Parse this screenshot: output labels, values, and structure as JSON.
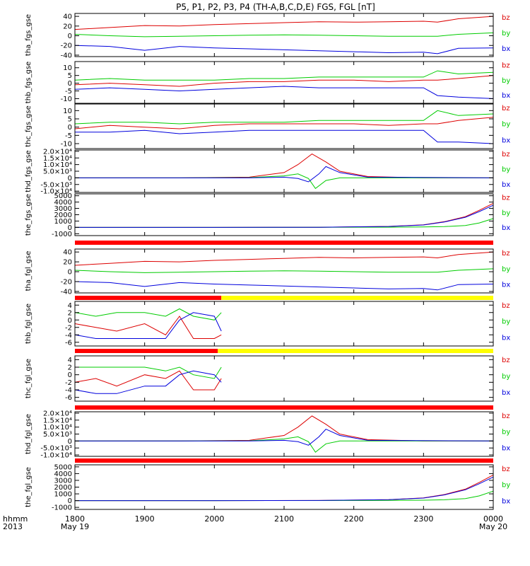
{
  "title": "P5, P1, P2, P3, P4 (TH-A,B,C,D,E) FGS, FGL [nT]",
  "x_axis": {
    "row1_label": "hhmm",
    "row2_label": "2013",
    "ticks": [
      "1800",
      "1900",
      "2000",
      "2100",
      "2200",
      "2300",
      "0000"
    ],
    "tick_dates": {
      "1800": "May 19",
      "0000": "May 20"
    }
  },
  "colors": {
    "bx": "#0000dd",
    "by": "#00cc00",
    "bz": "#dd0000",
    "flag_red": "#ff0000",
    "flag_yellow": "#ffff00",
    "flag_black": "#000000"
  },
  "chart_data": [
    {
      "type": "line",
      "ylabel": "tha_fgs_gse",
      "yticks": [
        "-40",
        "-20",
        "0",
        "20",
        "40"
      ],
      "tickvals": [
        -40,
        -20,
        0,
        20,
        40
      ],
      "ylim": [
        -43,
        46
      ],
      "xlim": [
        18,
        24
      ],
      "series": [
        {
          "name": "bz",
          "x": [
            18.0,
            18.5,
            19.0,
            19.5,
            20.0,
            20.5,
            21.0,
            21.5,
            22.0,
            22.5,
            23.0,
            23.2,
            23.5,
            24.0
          ],
          "values": [
            13,
            17,
            21,
            20,
            23,
            25,
            27,
            29,
            28,
            29,
            30,
            28,
            35,
            40
          ]
        },
        {
          "name": "by",
          "x": [
            18.0,
            18.5,
            19.0,
            19.5,
            20.0,
            20.5,
            21.0,
            21.5,
            22.0,
            22.5,
            23.0,
            23.2,
            23.5,
            24.0
          ],
          "values": [
            3,
            0,
            -2,
            -1,
            0,
            1,
            2,
            1,
            0,
            -1,
            -1,
            -1,
            3,
            6
          ]
        },
        {
          "name": "bx",
          "x": [
            18.0,
            18.5,
            19.0,
            19.5,
            20.0,
            20.5,
            21.0,
            21.5,
            22.0,
            22.5,
            23.0,
            23.2,
            23.5,
            24.0
          ],
          "values": [
            -20,
            -22,
            -30,
            -22,
            -25,
            -27,
            -29,
            -31,
            -33,
            -35,
            -34,
            -37,
            -26,
            -25
          ]
        }
      ]
    },
    {
      "type": "line",
      "ylabel": "thb_fgs_gse",
      "yticks": [
        "-10",
        "-5",
        "0",
        "5",
        "10"
      ],
      "tickvals": [
        -10,
        -5,
        0,
        5,
        10
      ],
      "ylim": [
        -13,
        14
      ],
      "xlim": [
        18,
        24
      ],
      "series": [
        {
          "name": "bz",
          "x": [
            18.0,
            18.5,
            19.0,
            19.5,
            20.0,
            20.5,
            21.0,
            21.5,
            22.0,
            22.5,
            23.0,
            23.2,
            23.5,
            24.0
          ],
          "values": [
            -1,
            0,
            -1,
            -2,
            0,
            1,
            1,
            2,
            2,
            1,
            2,
            2,
            3,
            5
          ]
        },
        {
          "name": "by",
          "x": [
            18.0,
            18.5,
            19.0,
            19.5,
            20.0,
            20.5,
            21.0,
            21.5,
            22.0,
            22.5,
            23.0,
            23.2,
            23.5,
            24.0
          ],
          "values": [
            2,
            3,
            2,
            2,
            2,
            3,
            3,
            4,
            4,
            4,
            4,
            8,
            6,
            7
          ]
        },
        {
          "name": "bx",
          "x": [
            18.0,
            18.5,
            19.0,
            19.5,
            20.0,
            20.5,
            21.0,
            21.5,
            22.0,
            22.5,
            23.0,
            23.2,
            23.5,
            24.0
          ],
          "values": [
            -4,
            -3,
            -4,
            -5,
            -4,
            -3,
            -2,
            -3,
            -3,
            -3,
            -3,
            -8,
            -9,
            -10
          ]
        }
      ]
    },
    {
      "type": "line",
      "ylabel": "thc_fgs_gse",
      "yticks": [
        "-10",
        "-5",
        "0",
        "5",
        "10"
      ],
      "tickvals": [
        -10,
        -5,
        0,
        5,
        10
      ],
      "ylim": [
        -13,
        14
      ],
      "xlim": [
        18,
        24
      ],
      "series": [
        {
          "name": "bz",
          "x": [
            18.0,
            18.5,
            19.0,
            19.5,
            20.0,
            20.5,
            21.0,
            21.5,
            22.0,
            22.5,
            23.0,
            23.2,
            23.5,
            24.0
          ],
          "values": [
            -1,
            1,
            0,
            -1,
            1,
            2,
            2,
            2,
            2,
            1,
            2,
            2,
            4,
            6
          ]
        },
        {
          "name": "by",
          "x": [
            18.0,
            18.5,
            19.0,
            19.5,
            20.0,
            20.5,
            21.0,
            21.5,
            22.0,
            22.5,
            23.0,
            23.2,
            23.5,
            24.0
          ],
          "values": [
            2,
            3,
            3,
            2,
            3,
            3,
            3,
            4,
            4,
            4,
            4,
            10,
            7,
            8
          ]
        },
        {
          "name": "bx",
          "x": [
            18.0,
            18.5,
            19.0,
            19.5,
            20.0,
            20.5,
            21.0,
            21.5,
            22.0,
            22.5,
            23.0,
            23.2,
            23.5,
            24.0
          ],
          "values": [
            -3,
            -3,
            -2,
            -4,
            -3,
            -2,
            -2,
            -2,
            -2,
            -2,
            -2,
            -9,
            -9,
            -10
          ]
        }
      ]
    },
    {
      "type": "line",
      "ylabel": "thd_fgs_gse",
      "yticks": [
        "-1.0×10⁴",
        "-5.0×10³",
        "0",
        "5.0×10³",
        "1.0×10⁴",
        "1.5×10⁴",
        "2.0×10⁴"
      ],
      "tickvals": [
        -10000,
        -5000,
        0,
        5000,
        10000,
        15000,
        20000
      ],
      "ylim": [
        -11000,
        21000
      ],
      "xlim": [
        18,
        24
      ],
      "series": [
        {
          "name": "bz",
          "x": [
            18.0,
            19.5,
            20.5,
            21.0,
            21.2,
            21.4,
            21.6,
            21.8,
            22.2,
            23.0,
            24.0
          ],
          "values": [
            0,
            0,
            500,
            4000,
            10000,
            18000,
            12000,
            5000,
            1000,
            0,
            0
          ]
        },
        {
          "name": "by",
          "x": [
            18.0,
            19.5,
            20.5,
            21.0,
            21.2,
            21.35,
            21.45,
            21.6,
            21.8,
            22.2,
            24.0
          ],
          "values": [
            0,
            0,
            200,
            1500,
            3000,
            -500,
            -8000,
            -2000,
            0,
            0,
            0
          ]
        },
        {
          "name": "bx",
          "x": [
            18.0,
            19.5,
            20.5,
            21.0,
            21.2,
            21.35,
            21.5,
            21.6,
            21.8,
            22.2,
            24.0
          ],
          "values": [
            0,
            0,
            0,
            500,
            -500,
            -3000,
            3000,
            8500,
            4000,
            500,
            0
          ]
        }
      ]
    },
    {
      "type": "line",
      "ylabel": "the_fgs_gse",
      "yticks": [
        "-1000",
        "0",
        "1000",
        "2000",
        "3000",
        "4000",
        "5000"
      ],
      "tickvals": [
        -1000,
        0,
        1000,
        2000,
        3000,
        4000,
        5000
      ],
      "ylim": [
        -1300,
        5300
      ],
      "xlim": [
        18,
        24
      ],
      "series": [
        {
          "name": "bz",
          "x": [
            18.0,
            20.0,
            21.5,
            22.5,
            23.0,
            23.3,
            23.6,
            23.8,
            24.0
          ],
          "values": [
            0,
            0,
            20,
            150,
            400,
            900,
            1700,
            2700,
            3800
          ]
        },
        {
          "name": "by",
          "x": [
            18.0,
            20.0,
            21.5,
            22.5,
            23.0,
            23.3,
            23.6,
            23.8,
            24.0
          ],
          "values": [
            0,
            0,
            10,
            30,
            60,
            120,
            300,
            700,
            1400
          ]
        },
        {
          "name": "bx",
          "x": [
            18.0,
            20.0,
            21.5,
            22.5,
            23.0,
            23.3,
            23.6,
            23.8,
            24.0
          ],
          "values": [
            0,
            0,
            20,
            140,
            380,
            850,
            1600,
            2500,
            3500
          ]
        }
      ]
    },
    {
      "type": "line",
      "ylabel": "tha_fgl_gse",
      "yticks": [
        "-40",
        "-20",
        "0",
        "20",
        "40"
      ],
      "tickvals": [
        -40,
        -20,
        0,
        20,
        40
      ],
      "ylim": [
        -43,
        46
      ],
      "xlim": [
        18,
        24
      ],
      "series": [
        {
          "name": "bz",
          "x": [
            18.0,
            18.5,
            19.0,
            19.5,
            20.0,
            20.5,
            21.0,
            21.5,
            22.0,
            22.5,
            23.0,
            23.2,
            23.5,
            24.0
          ],
          "values": [
            13,
            17,
            21,
            20,
            23,
            25,
            27,
            29,
            28,
            29,
            30,
            28,
            35,
            40
          ]
        },
        {
          "name": "by",
          "x": [
            18.0,
            18.5,
            19.0,
            19.5,
            20.0,
            20.5,
            21.0,
            21.5,
            22.0,
            22.5,
            23.0,
            23.2,
            23.5,
            24.0
          ],
          "values": [
            3,
            0,
            -2,
            -1,
            0,
            1,
            2,
            1,
            0,
            -1,
            -1,
            -1,
            3,
            6
          ]
        },
        {
          "name": "bx",
          "x": [
            18.0,
            18.5,
            19.0,
            19.5,
            20.0,
            20.5,
            21.0,
            21.5,
            22.0,
            22.5,
            23.0,
            23.2,
            23.5,
            24.0
          ],
          "values": [
            -20,
            -22,
            -30,
            -22,
            -25,
            -27,
            -29,
            -31,
            -33,
            -35,
            -34,
            -37,
            -26,
            -25
          ]
        }
      ]
    },
    {
      "type": "line",
      "ylabel": "thb_fgl_gse",
      "yticks": [
        "-6",
        "-4",
        "-2",
        "0",
        "2",
        "4"
      ],
      "tickvals": [
        -6,
        -4,
        -2,
        0,
        2,
        4
      ],
      "ylim": [
        -7,
        5
      ],
      "xlim": [
        18,
        24
      ],
      "series": [
        {
          "name": "bz",
          "x": [
            18.0,
            18.3,
            18.6,
            19.0,
            19.3,
            19.5,
            19.7,
            20.0,
            20.1
          ],
          "values": [
            -1,
            -2,
            -3,
            -1,
            -4,
            1,
            -5,
            -5,
            -4
          ]
        },
        {
          "name": "by",
          "x": [
            18.0,
            18.3,
            18.6,
            19.0,
            19.3,
            19.5,
            19.7,
            20.0,
            20.1
          ],
          "values": [
            2,
            1,
            2,
            2,
            1,
            3,
            1,
            0,
            2
          ]
        },
        {
          "name": "bx",
          "x": [
            18.0,
            18.3,
            18.6,
            19.0,
            19.3,
            19.5,
            19.7,
            20.0,
            20.1
          ],
          "values": [
            -4,
            -5,
            -5,
            -5,
            -5,
            0,
            2,
            1,
            -3
          ]
        }
      ]
    },
    {
      "type": "line",
      "ylabel": "thc_fgl_gse",
      "yticks": [
        "-6",
        "-4",
        "-2",
        "0",
        "2",
        "4"
      ],
      "tickvals": [
        -6,
        -4,
        -2,
        0,
        2,
        4
      ],
      "ylim": [
        -7,
        5
      ],
      "xlim": [
        18,
        24
      ],
      "series": [
        {
          "name": "bz",
          "x": [
            18.0,
            18.3,
            18.6,
            19.0,
            19.3,
            19.5,
            19.7,
            20.0,
            20.1
          ],
          "values": [
            -2,
            -1,
            -3,
            0,
            -1,
            1,
            -4,
            -4,
            -1
          ]
        },
        {
          "name": "by",
          "x": [
            18.0,
            18.3,
            18.6,
            19.0,
            19.3,
            19.5,
            19.7,
            20.0,
            20.1
          ],
          "values": [
            2,
            2,
            2,
            2,
            1,
            2,
            0,
            -1,
            2
          ]
        },
        {
          "name": "bx",
          "x": [
            18.0,
            18.3,
            18.6,
            19.0,
            19.3,
            19.5,
            19.7,
            20.0,
            20.1
          ],
          "values": [
            -4,
            -5,
            -5,
            -3,
            -3,
            0,
            1,
            0,
            -2
          ]
        }
      ]
    },
    {
      "type": "line",
      "ylabel": "thd_fgl_gse",
      "yticks": [
        "-1.0×10⁴",
        "-5.0×10³",
        "0",
        "5.0×10³",
        "1.0×10⁴",
        "1.5×10⁴",
        "2.0×10⁴"
      ],
      "tickvals": [
        -10000,
        -5000,
        0,
        5000,
        10000,
        15000,
        20000
      ],
      "ylim": [
        -11000,
        21000
      ],
      "xlim": [
        18,
        24
      ],
      "series": [
        {
          "name": "bz",
          "x": [
            18.0,
            19.5,
            20.5,
            21.0,
            21.2,
            21.4,
            21.6,
            21.8,
            22.2,
            23.0,
            24.0
          ],
          "values": [
            0,
            0,
            500,
            4000,
            10000,
            18000,
            12000,
            5000,
            1000,
            0,
            0
          ]
        },
        {
          "name": "by",
          "x": [
            18.0,
            19.5,
            20.5,
            21.0,
            21.2,
            21.35,
            21.45,
            21.6,
            21.8,
            22.2,
            24.0
          ],
          "values": [
            0,
            0,
            200,
            1500,
            3000,
            -500,
            -8000,
            -2000,
            0,
            0,
            0
          ]
        },
        {
          "name": "bx",
          "x": [
            18.0,
            19.5,
            20.5,
            21.0,
            21.2,
            21.35,
            21.5,
            21.6,
            21.8,
            22.2,
            24.0
          ],
          "values": [
            0,
            0,
            0,
            500,
            -500,
            -3000,
            3000,
            8500,
            4000,
            500,
            0
          ]
        }
      ]
    },
    {
      "type": "line",
      "ylabel": "the_fgl_gse",
      "yticks": [
        "-1000",
        "0",
        "1000",
        "2000",
        "3000",
        "4000",
        "5000"
      ],
      "tickvals": [
        -1000,
        0,
        1000,
        2000,
        3000,
        4000,
        5000
      ],
      "ylim": [
        -1300,
        5300
      ],
      "xlim": [
        18,
        24
      ],
      "series": [
        {
          "name": "bz",
          "x": [
            18.0,
            20.0,
            21.5,
            22.5,
            23.0,
            23.3,
            23.6,
            23.8,
            24.0
          ],
          "values": [
            0,
            0,
            20,
            150,
            400,
            900,
            1700,
            2700,
            3800
          ]
        },
        {
          "name": "by",
          "x": [
            18.0,
            20.0,
            21.5,
            22.5,
            23.0,
            23.3,
            23.6,
            23.8,
            24.0
          ],
          "values": [
            0,
            0,
            10,
            30,
            60,
            120,
            300,
            700,
            1400
          ]
        },
        {
          "name": "bx",
          "x": [
            18.0,
            20.0,
            21.5,
            22.5,
            23.0,
            23.3,
            23.6,
            23.8,
            24.0
          ],
          "values": [
            0,
            0,
            20,
            140,
            380,
            850,
            1600,
            2500,
            3500
          ]
        }
      ]
    }
  ]
}
